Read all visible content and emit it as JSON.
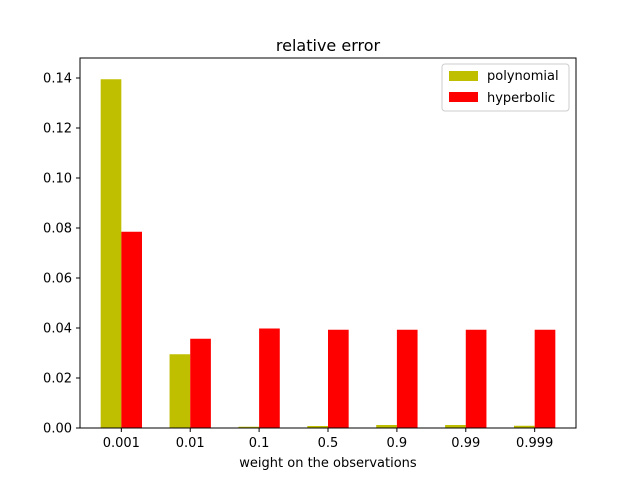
{
  "chart_data": {
    "type": "bar",
    "title": "relative error",
    "xlabel": "weight on the observations",
    "ylabel": "",
    "categories": [
      "0.001",
      "0.01",
      "0.1",
      "0.5",
      "0.9",
      "0.99",
      "0.999"
    ],
    "ylim": [
      0,
      0.148
    ],
    "yticks": [
      0.0,
      0.02,
      0.04,
      0.06,
      0.08,
      0.1,
      0.12,
      0.14
    ],
    "ytick_labels": [
      "0.00",
      "0.02",
      "0.04",
      "0.06",
      "0.08",
      "0.10",
      "0.12",
      "0.14"
    ],
    "grid": false,
    "legend_position": "top-right",
    "series": [
      {
        "name": "polynomial",
        "color": "#bfbf00",
        "values": [
          0.1395,
          0.0295,
          0.0005,
          0.0008,
          0.0012,
          0.0012,
          0.0009
        ]
      },
      {
        "name": "hyperbolic",
        "color": "#ff0000",
        "values": [
          0.0785,
          0.0357,
          0.0398,
          0.0393,
          0.0393,
          0.0393,
          0.0393
        ]
      }
    ]
  }
}
